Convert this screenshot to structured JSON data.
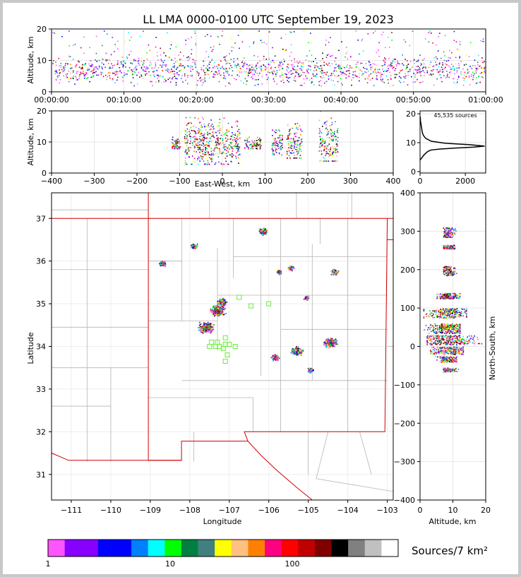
{
  "title": "LL LMA 0000-0100 UTC September 19, 2023",
  "panels": {
    "time_height": {
      "ylabel": "Altitude, km",
      "xticks": [
        "00:00:00",
        "00:10:00",
        "00:20:00",
        "00:30:00",
        "00:40:00",
        "00:50:00",
        "01:00:00"
      ],
      "yticks": [
        "0",
        "10",
        "20"
      ]
    },
    "ew_height": {
      "ylabel": "Altitude, km",
      "xlabel": "East-West, km",
      "xticks": [
        "−400",
        "−300",
        "−200",
        "−100",
        "0",
        "100",
        "200",
        "300",
        "400"
      ],
      "yticks": [
        "0",
        "10",
        "20"
      ]
    },
    "histogram": {
      "annotation": "45,535 sources",
      "xticks": [
        "0",
        "2000"
      ],
      "yticks": [
        "0",
        "10",
        "20"
      ]
    },
    "map": {
      "xlabel": "Longitude",
      "ylabel": "Latitude",
      "xticks": [
        "−111",
        "−110",
        "−109",
        "−108",
        "−107",
        "−106",
        "−105",
        "−104",
        "−103"
      ],
      "yticks": [
        "31",
        "32",
        "33",
        "34",
        "35",
        "36",
        "37"
      ]
    },
    "ns_height": {
      "ylabel": "North-South, km",
      "xlabel": "Altitude, km",
      "xticks": [
        "0",
        "10",
        "20"
      ],
      "yticks": [
        "400",
        "300",
        "200",
        "100",
        "0",
        "−100",
        "−200",
        "−300",
        "−400"
      ]
    }
  },
  "colorbar": {
    "label": "Sources/7 km²",
    "ticks": [
      "1",
      "10",
      "100"
    ],
    "colors": [
      "#ff55ff",
      "#8800ff",
      "#8800ff",
      "#0000ff",
      "#0000ff",
      "#0080ff",
      "#00ffff",
      "#00ff00",
      "#008040",
      "#408080",
      "#ffff00",
      "#ffc080",
      "#ff8000",
      "#ff0080",
      "#ff0000",
      "#c00000",
      "#800000",
      "#000000",
      "#808080",
      "#c0c0c0",
      "#ffffff"
    ]
  },
  "chart_data": [
    {
      "type": "scatter",
      "name": "time-height",
      "ylabel": "Altitude, km",
      "xlim": [
        "00:00:00",
        "01:00:00"
      ],
      "ylim": [
        0,
        20
      ],
      "bands": [
        {
          "x": [
            "00:00:00",
            "01:00:00"
          ],
          "core_altitude_km": [
            7,
            12
          ],
          "extent_km": [
            2,
            20
          ]
        }
      ]
    },
    {
      "type": "scatter",
      "name": "east-west vs altitude",
      "xlabel": "East-West, km",
      "ylabel": "Altitude, km",
      "xlim": [
        -400,
        400
      ],
      "ylim": [
        0,
        20
      ],
      "clusters": [
        {
          "x": [
            -120,
            -100
          ],
          "z": [
            8,
            12
          ],
          "density": 0.3
        },
        {
          "x": [
            -90,
            40
          ],
          "z": [
            3,
            18
          ],
          "density": 1.0
        },
        {
          "x": [
            50,
            90
          ],
          "z": [
            8,
            12
          ],
          "density": 0.3
        },
        {
          "x": [
            115,
            140
          ],
          "z": [
            6,
            14
          ],
          "density": 0.5
        },
        {
          "x": [
            150,
            185
          ],
          "z": [
            5,
            17
          ],
          "density": 0.7
        },
        {
          "x": [
            225,
            270
          ],
          "z": [
            4,
            20
          ],
          "density": 0.9
        }
      ]
    },
    {
      "type": "line",
      "name": "altitude histogram",
      "annotation": "45,535 sources",
      "xlim": [
        0,
        2900
      ],
      "ylim": [
        0,
        21
      ],
      "x": [
        0,
        100,
        200,
        350,
        500,
        900,
        1500,
        2400,
        2850,
        2200,
        1100,
        500,
        250,
        150,
        100,
        80,
        60,
        40,
        20,
        10
      ],
      "y": [
        4,
        5,
        6,
        7,
        7.5,
        7.8,
        8.1,
        8.5,
        8.8,
        9.3,
        9.8,
        10.5,
        11.5,
        12.5,
        13.5,
        14.5,
        15.5,
        16.5,
        17.5,
        19
      ]
    },
    {
      "type": "scatter",
      "name": "plan view",
      "xlabel": "Longitude",
      "ylabel": "Latitude",
      "xlim": [
        -111.5,
        -102.85
      ],
      "ylim": [
        30.4,
        37.6
      ],
      "clusters": [
        {
          "lon": -107.3,
          "lat": 34.85,
          "density": 1.0
        },
        {
          "lon": -107.6,
          "lat": 34.45,
          "density": 1.0
        },
        {
          "lon": -107.2,
          "lat": 35.05,
          "density": 0.6
        },
        {
          "lon": -104.45,
          "lat": 34.1,
          "density": 0.9
        },
        {
          "lon": -105.3,
          "lat": 33.9,
          "density": 0.7
        },
        {
          "lon": -105.85,
          "lat": 33.75,
          "density": 0.4
        },
        {
          "lon": -106.15,
          "lat": 36.7,
          "density": 0.5
        },
        {
          "lon": -107.9,
          "lat": 36.35,
          "density": 0.3
        },
        {
          "lon": -108.7,
          "lat": 35.95,
          "density": 0.3
        },
        {
          "lon": -104.35,
          "lat": 35.75,
          "density": 0.4
        },
        {
          "lon": -105.45,
          "lat": 35.85,
          "density": 0.3
        },
        {
          "lon": -105.75,
          "lat": 35.75,
          "density": 0.2
        },
        {
          "lon": -105.05,
          "lat": 35.15,
          "density": 0.2
        },
        {
          "lon": -104.95,
          "lat": 33.45,
          "density": 0.2
        }
      ],
      "stations": [
        {
          "lon": -106.45,
          "lat": 34.95
        },
        {
          "lon": -106.0,
          "lat": 35.0
        },
        {
          "lon": -106.75,
          "lat": 35.15
        },
        {
          "lon": -107.35,
          "lat": 34.0
        },
        {
          "lon": -107.25,
          "lat": 34.0
        },
        {
          "lon": -107.1,
          "lat": 34.2
        },
        {
          "lon": -107.1,
          "lat": 34.05
        },
        {
          "lon": -107.0,
          "lat": 34.05
        },
        {
          "lon": -107.15,
          "lat": 33.95
        },
        {
          "lon": -107.05,
          "lat": 33.8
        },
        {
          "lon": -106.85,
          "lat": 34.0
        },
        {
          "lon": -107.1,
          "lat": 33.65
        },
        {
          "lon": -107.45,
          "lat": 34.1
        },
        {
          "lon": -107.5,
          "lat": 34.0
        },
        {
          "lon": -107.3,
          "lat": 34.1
        }
      ]
    },
    {
      "type": "scatter",
      "name": "altitude vs north-south",
      "xlabel": "Altitude, km",
      "ylabel": "North-South, km",
      "xlim": [
        0,
        20
      ],
      "ylim": [
        -400,
        400
      ],
      "clusters": [
        {
          "z": [
            2,
            20
          ],
          "y": [
            5,
            30
          ],
          "density": 1.0
        },
        {
          "z": [
            1,
            12
          ],
          "y": [
            35,
            60
          ],
          "density": 0.9
        },
        {
          "z": [
            1,
            14
          ],
          "y": [
            75,
            100
          ],
          "density": 0.8
        },
        {
          "z": [
            5,
            12
          ],
          "y": [
            125,
            140
          ],
          "density": 0.5
        },
        {
          "z": [
            3,
            13
          ],
          "y": [
            -20,
            0
          ],
          "density": 0.7
        },
        {
          "z": [
            4,
            11
          ],
          "y": [
            -40,
            -25
          ],
          "density": 0.4
        },
        {
          "z": [
            7,
            12
          ],
          "y": [
            -65,
            -55
          ],
          "density": 0.2
        },
        {
          "z": [
            7,
            11
          ],
          "y": [
            185,
            210
          ],
          "density": 0.4
        },
        {
          "z": [
            7,
            11
          ],
          "y": [
            255,
            265
          ],
          "density": 0.2
        },
        {
          "z": [
            7,
            11
          ],
          "y": [
            285,
            310
          ],
          "density": 0.3
        }
      ]
    }
  ]
}
